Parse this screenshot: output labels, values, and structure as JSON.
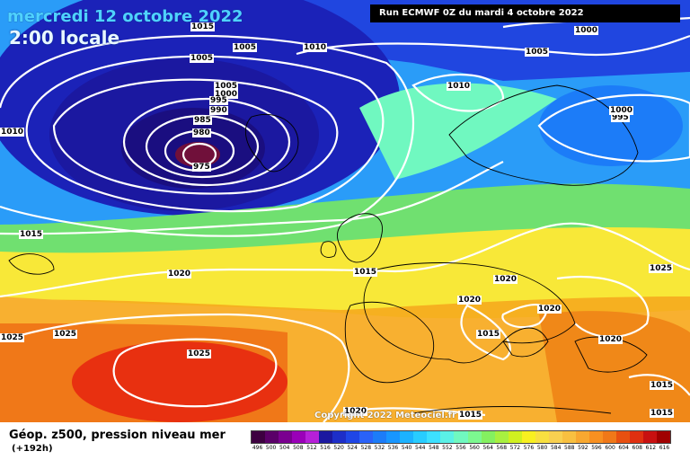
{
  "header": {
    "date": "mercredi 12 octobre 2022",
    "time": "2:00 locale",
    "run": "Run ECMWF 0Z du mardi 4 octobre 2022"
  },
  "copyright": "Copyright 2022 Meteociel.fr",
  "pressure_labels": [
    "1015",
    "1005",
    "1010",
    "1005",
    "1000",
    "1005",
    "1000",
    "995",
    "990",
    "985",
    "980",
    "975",
    "1010",
    "1010",
    "995",
    "1000",
    "1005",
    "1015",
    "1020",
    "1015",
    "1020",
    "1020",
    "1020",
    "1025",
    "1025",
    "1025",
    "1020",
    "1015",
    "1020",
    "1015",
    "1015",
    "1015",
    "1025"
  ],
  "legend": {
    "title": "Géop. z500, pression niveau mer",
    "subtitle": "(+192h)",
    "ticks": [
      "496",
      "500",
      "504",
      "508",
      "512",
      "516",
      "520",
      "524",
      "528",
      "532",
      "536",
      "540",
      "544",
      "548",
      "552",
      "556",
      "560",
      "564",
      "568",
      "572",
      "576",
      "580",
      "584",
      "588",
      "592",
      "596",
      "600",
      "604",
      "608",
      "612",
      "616"
    ],
    "colors": [
      "#3d0040",
      "#5a0068",
      "#7a0090",
      "#9a00b8",
      "#b620d8",
      "#1b18a0",
      "#1d2ec8",
      "#1f46e6",
      "#2a62f8",
      "#1c7cf8",
      "#1896ff",
      "#1cb2ff",
      "#28ccff",
      "#3ce0ff",
      "#5af0e6",
      "#70f8c0",
      "#7cf890",
      "#84f060",
      "#a8f040",
      "#d0f020",
      "#f8f020",
      "#f8e040",
      "#f8d050",
      "#f8c040",
      "#f8a830",
      "#f89020",
      "#f07818",
      "#e85010",
      "#e03010",
      "#c81010",
      "#a00000"
    ]
  }
}
